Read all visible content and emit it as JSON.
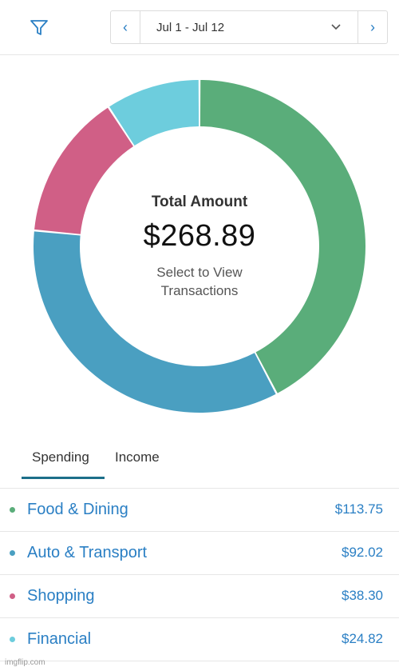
{
  "header": {
    "date_range": "Jul 1 - Jul 12",
    "prev_arrow": "‹",
    "next_arrow": "›"
  },
  "summary": {
    "title": "Total Amount",
    "total": "$268.89",
    "hint": "Select to View Transactions"
  },
  "tabs": [
    {
      "label": "Spending",
      "active": true
    },
    {
      "label": "Income",
      "active": false
    }
  ],
  "categories": [
    {
      "name": "Food & Dining",
      "amount": "$113.75",
      "color": "#5aad7a"
    },
    {
      "name": "Auto & Transport",
      "amount": "$92.02",
      "color": "#4a9fc1"
    },
    {
      "name": "Shopping",
      "amount": "$38.30",
      "color": "#d05f86"
    },
    {
      "name": "Financial",
      "amount": "$24.82",
      "color": "#6dcddd"
    }
  ],
  "chart_data": {
    "type": "pie",
    "categories": [
      "Food & Dining",
      "Auto & Transport",
      "Shopping",
      "Financial"
    ],
    "values": [
      113.75,
      92.02,
      38.3,
      24.82
    ],
    "colors": [
      "#5aad7a",
      "#4a9fc1",
      "#d05f86",
      "#6dcddd"
    ],
    "donut": true
  },
  "watermark": "imgflip.com",
  "colors": {
    "link": "#2a7fc4",
    "tab_underline": "#1d6f8a"
  }
}
